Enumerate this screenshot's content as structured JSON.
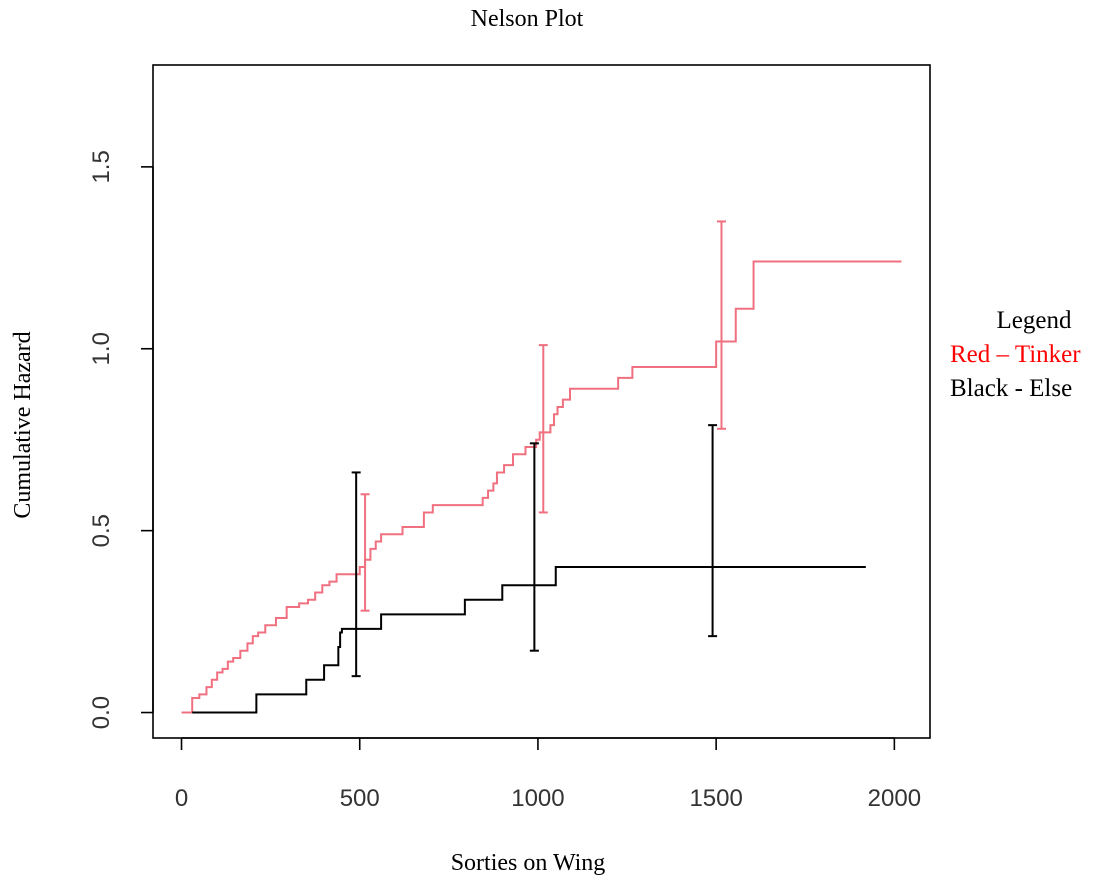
{
  "chart_data": {
    "type": "line",
    "step": true,
    "title": "Nelson Plot",
    "xlabel": "Sorties on Wing",
    "ylabel": "Cumulative Hazard",
    "xlim": [
      -80,
      2100
    ],
    "ylim": [
      -0.07,
      1.78
    ],
    "xticks": [
      0,
      500,
      1000,
      1500,
      2000
    ],
    "xtick_labels": [
      "0",
      "500",
      "1000",
      "1500",
      "2000"
    ],
    "yticks": [
      0.0,
      0.5,
      1.0,
      1.5
    ],
    "ytick_labels": [
      "0.0",
      "0.5",
      "1.0",
      "1.5"
    ],
    "grid": false,
    "legend_placement": "right",
    "legend": {
      "title": "Legend",
      "entries": [
        {
          "label": "Red – Tinker",
          "color": "#ff0000"
        },
        {
          "label": "Black - Else",
          "color": "#000000"
        }
      ]
    },
    "series": [
      {
        "color": "#f07080",
        "x": [
          0,
          30,
          50,
          70,
          85,
          100,
          115,
          130,
          145,
          165,
          185,
          200,
          215,
          235,
          265,
          295,
          330,
          355,
          375,
          395,
          415,
          435,
          500,
          515,
          530,
          545,
          560,
          620,
          680,
          705,
          845,
          860,
          875,
          885,
          905,
          930,
          965,
          995,
          1005,
          1035,
          1045,
          1055,
          1070,
          1090,
          1225,
          1265,
          1500,
          1555,
          1605,
          2020
        ],
        "y": [
          0.0,
          0.04,
          0.05,
          0.07,
          0.09,
          0.11,
          0.12,
          0.14,
          0.15,
          0.17,
          0.19,
          0.21,
          0.22,
          0.24,
          0.26,
          0.29,
          0.3,
          0.31,
          0.33,
          0.35,
          0.36,
          0.38,
          0.4,
          0.42,
          0.45,
          0.47,
          0.49,
          0.51,
          0.55,
          0.57,
          0.59,
          0.61,
          0.63,
          0.66,
          0.68,
          0.71,
          0.73,
          0.75,
          0.77,
          0.79,
          0.82,
          0.84,
          0.86,
          0.89,
          0.92,
          0.95,
          1.02,
          1.11,
          1.24,
          1.24
        ]
      },
      {
        "color": "#000000",
        "x": [
          30,
          210,
          350,
          400,
          440,
          445,
          450,
          560,
          795,
          900,
          1050,
          1920
        ],
        "y": [
          0.0,
          0.05,
          0.09,
          0.13,
          0.18,
          0.22,
          0.23,
          0.27,
          0.31,
          0.35,
          0.4,
          0.4
        ]
      }
    ],
    "error_bars": [
      {
        "series": 0,
        "x": 515,
        "y": 0.4,
        "low": 0.28,
        "high": 0.6
      },
      {
        "series": 0,
        "x": 1015,
        "y": 0.75,
        "low": 0.55,
        "high": 1.01
      },
      {
        "series": 0,
        "x": 1515,
        "y": 1.02,
        "low": 0.78,
        "high": 1.35
      },
      {
        "series": 1,
        "x": 490,
        "y": 0.23,
        "low": 0.1,
        "high": 0.66
      },
      {
        "series": 1,
        "x": 990,
        "y": 0.35,
        "low": 0.17,
        "high": 0.74
      },
      {
        "series": 1,
        "x": 1490,
        "y": 0.4,
        "low": 0.21,
        "high": 0.79
      }
    ]
  }
}
